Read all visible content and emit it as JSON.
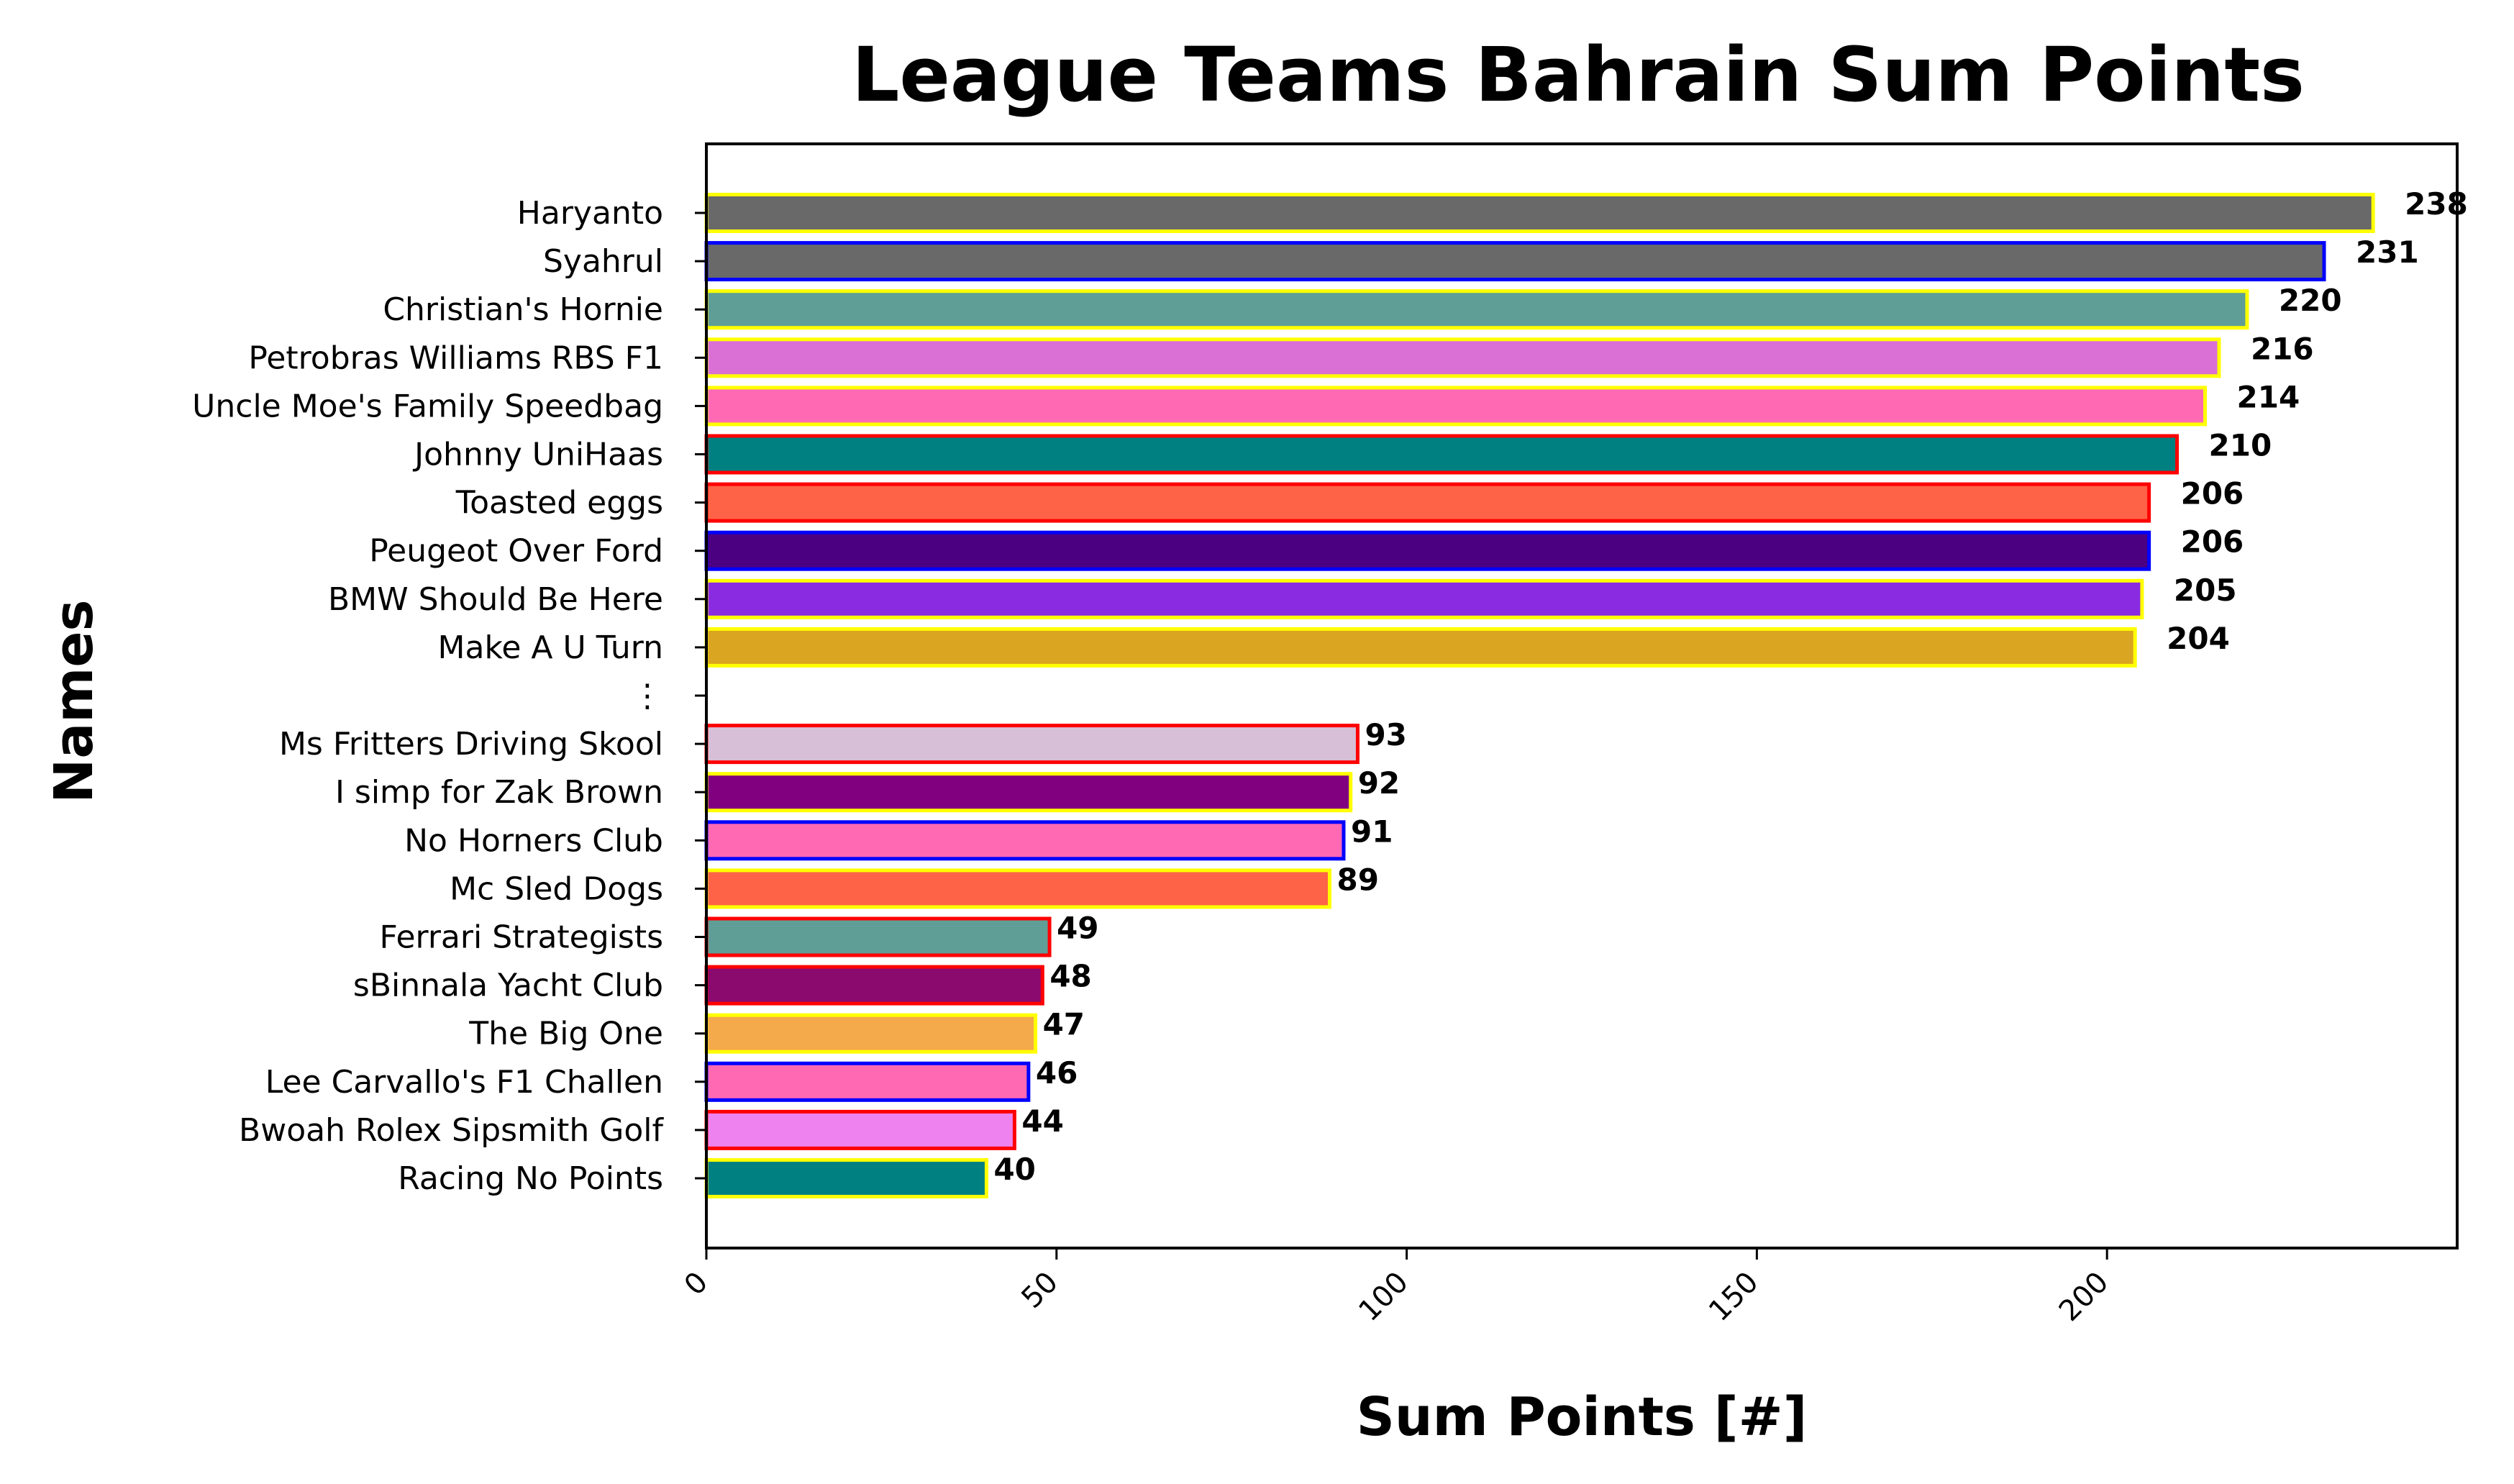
{
  "chart_data": {
    "type": "bar",
    "orientation": "horizontal",
    "title": "League Teams Bahrain Sum Points",
    "xlabel": "Sum Points [#]",
    "ylabel": "Names",
    "xlim": [
      0,
      250
    ],
    "xticks": [
      0,
      50,
      100,
      150,
      200
    ],
    "grid": false,
    "legend": "none",
    "categories": [
      "Haryanto",
      "Syahrul",
      "Christian's Hornie",
      "Petrobras Williams RBS F1",
      "Uncle Moe's Family Speedbag",
      "Johnny UniHaas",
      "Toasted eggs",
      "Peugeot Over Ford",
      "BMW Should Be Here",
      "Make A U Turn",
      "⋮",
      "Ms Fritters Driving Skool",
      "I simp for Zak Brown",
      "No Horners Club",
      "Mc Sled Dogs",
      "Ferrari Strategists",
      "sBinnala Yacht Club",
      "The Big One",
      "Lee Carvallo's F1 Challen",
      "Bwoah Rolex Sipsmith Golf",
      "Racing No Points"
    ],
    "values": [
      238,
      231,
      220,
      216,
      214,
      210,
      206,
      206,
      205,
      204,
      null,
      93,
      92,
      91,
      89,
      49,
      48,
      47,
      46,
      44,
      40
    ],
    "bar_colors": [
      "#696969",
      "#696969",
      "#5F9E96",
      "#DA70D6",
      "#FF69B4",
      "#008080",
      "#FF6347",
      "#4B0082",
      "#8A2BE2",
      "#DAA520",
      null,
      "#D8BFD8",
      "#800080",
      "#FF69B4",
      "#FF6347",
      "#5F9E96",
      "#8B0A6E",
      "#F4A94A",
      "#FF69B4",
      "#EE82EE",
      "#008080"
    ],
    "edge_colors": [
      "#FFFF00",
      "#0000FF",
      "#FFFF00",
      "#FFFF00",
      "#FFFF00",
      "#FF0000",
      "#FF0000",
      "#0000FF",
      "#FFFF00",
      "#FFFF00",
      null,
      "#FF0000",
      "#FFFF00",
      "#0000FF",
      "#FFFF00",
      "#FF0000",
      "#FF0000",
      "#FFFF00",
      "#0000FF",
      "#FF0000",
      "#FFFF00"
    ]
  }
}
